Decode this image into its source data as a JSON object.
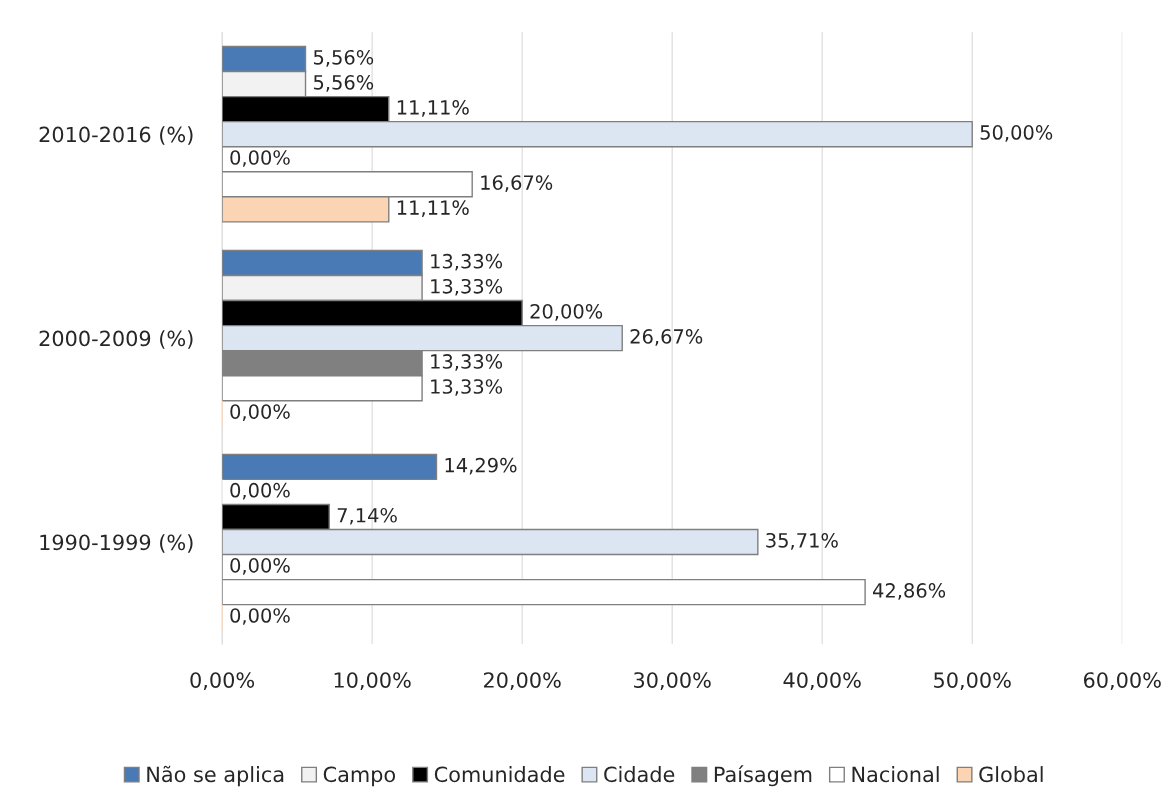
{
  "chart_data": {
    "type": "bar",
    "orientation": "horizontal",
    "categories": [
      "2010-2016 (%)",
      "2000-2009 (%)",
      "1990-1999 (%)"
    ],
    "series": [
      {
        "name": "Não se aplica",
        "color": "#4a7ab5",
        "values": [
          5.56,
          13.33,
          14.29
        ],
        "value_labels": [
          "5,56%",
          "13,33%",
          "14,29%"
        ]
      },
      {
        "name": "Campo",
        "color": "#f2f2f2",
        "values": [
          5.56,
          13.33,
          0
        ],
        "value_labels": [
          "5,56%",
          "13,33%",
          "0,00%"
        ]
      },
      {
        "name": "Comunidade",
        "color": "#000000",
        "values": [
          11.11,
          20.0,
          7.14
        ],
        "value_labels": [
          "11,11%",
          "20,00%",
          "7,14%"
        ]
      },
      {
        "name": "Cidade",
        "color": "#dce6f2",
        "values": [
          50.0,
          26.67,
          35.71
        ],
        "value_labels": [
          "50,00%",
          "26,67%",
          "35,71%"
        ]
      },
      {
        "name": "Paísagem",
        "color": "#808080",
        "values": [
          0,
          13.33,
          0
        ],
        "value_labels": [
          "0,00%",
          "13,33%",
          "0,00%"
        ]
      },
      {
        "name": "Nacional",
        "color": "#ffffff",
        "values": [
          16.67,
          13.33,
          42.86
        ],
        "value_labels": [
          "16,67%",
          "13,33%",
          "42,86%"
        ]
      },
      {
        "name": "Global",
        "color": "#fbd4b4",
        "values": [
          11.11,
          0,
          0
        ],
        "value_labels": [
          "11,11%",
          "0,00%",
          "0,00%"
        ]
      }
    ],
    "xlim": [
      0,
      60
    ],
    "xticks": [
      {
        "value": 0,
        "label": "0,00%"
      },
      {
        "value": 10,
        "label": "10,00%"
      },
      {
        "value": 20,
        "label": "20,00%"
      },
      {
        "value": 30,
        "label": "30,00%"
      },
      {
        "value": 40,
        "label": "40,00%"
      },
      {
        "value": 50,
        "label": "50,00%"
      },
      {
        "value": 60,
        "label": "60,00%"
      }
    ],
    "grid": "x",
    "legend": "bottom"
  }
}
